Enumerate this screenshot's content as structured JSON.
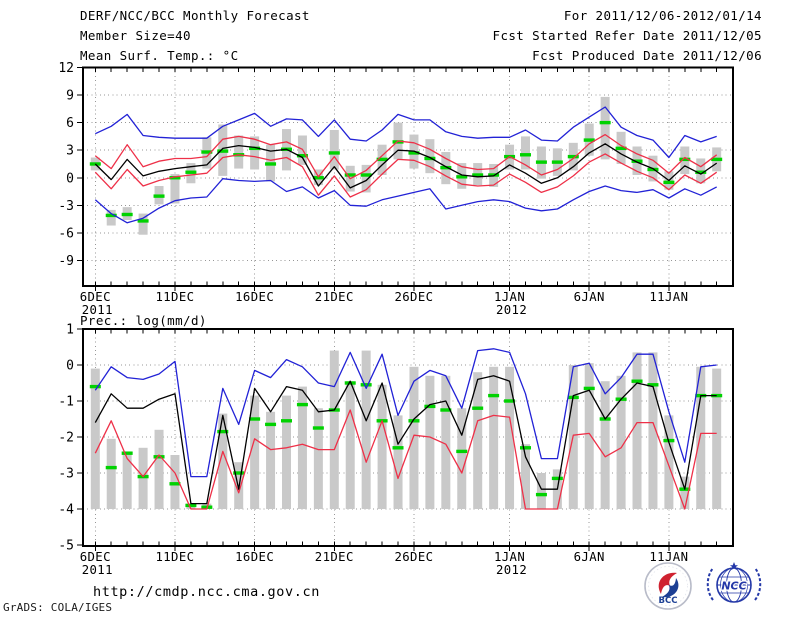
{
  "header": {
    "title": "DERF/NCC/BCC Monthly Forecast",
    "member_size": "Member Size=40",
    "for_period": "For 2011/12/06-2012/01/14",
    "refer_date": "Fcst Started Refer Date 2011/12/05",
    "produced_date": "Fcst Produced Date 2011/12/06"
  },
  "footer": {
    "url": "http://cmdp.ncc.cma.gov.cn",
    "grads_credit": "GrADS: COLA/IGES",
    "bcc_logo_text": "BCC",
    "ncc_logo_text": "NCC"
  },
  "colors": {
    "max_min_line": "#2222d6",
    "sigma_line": "#ee3048",
    "mean_line": "#000000",
    "obs_marker": "#00d200",
    "spread_bar": "#c9c9c9",
    "grid": "#979797"
  },
  "chart_data": [
    {
      "type": "line",
      "title": "Mean Surf. Temp.: °C",
      "n_points": 40,
      "grid": "dotted",
      "legend": "none",
      "ylim": [
        -11.7,
        12
      ],
      "yticks": [
        12,
        9,
        6,
        3,
        0,
        -3,
        -6,
        -9
      ],
      "x_ticks": [
        {
          "label": "6DEC",
          "sub": "2011",
          "day": 0
        },
        {
          "label": "11DEC",
          "day": 5
        },
        {
          "label": "16DEC",
          "day": 10
        },
        {
          "label": "21DEC",
          "day": 15
        },
        {
          "label": "26DEC",
          "day": 20
        },
        {
          "label": "1JAN",
          "sub": "2012",
          "day": 26
        },
        {
          "label": "6JAN",
          "day": 31
        },
        {
          "label": "11JAN",
          "day": 36
        }
      ],
      "bars": {
        "name": "ensemble-spread",
        "color": "#c9c9c9",
        "bottom": [
          0.8,
          -5.2,
          -4.6,
          -6.2,
          -2.9,
          -2.8,
          -0.6,
          1.0,
          0.2,
          1.0,
          0.9,
          -0.4,
          0.8,
          1.4,
          -0.8,
          0.9,
          -1.5,
          -1.6,
          0.3,
          2.0,
          1.0,
          0.5,
          -0.7,
          -1.2,
          -0.8,
          -1.0,
          0.9,
          0.9,
          -0.1,
          0.2,
          0.8,
          2.4,
          2.0,
          1.5,
          0.3,
          -0.4,
          -1.3,
          0.4,
          -0.6,
          0.7
        ],
        "top": [
          2.2,
          -3.5,
          -3.2,
          -3.9,
          -0.9,
          0.4,
          1.6,
          4.4,
          5.8,
          4.6,
          4.5,
          3.6,
          5.3,
          4.6,
          0.9,
          5.2,
          1.3,
          1.4,
          3.6,
          6.0,
          4.7,
          4.2,
          2.8,
          1.6,
          1.6,
          1.5,
          3.6,
          4.5,
          3.4,
          3.2,
          3.8,
          5.9,
          8.8,
          5.0,
          3.4,
          2.4,
          0.7,
          3.4,
          2.1,
          3.3
        ]
      },
      "series": [
        {
          "name": "plus-sigma",
          "style": "line",
          "color": "#ee3048",
          "values": [
            2.4,
            1.0,
            3.6,
            1.2,
            1.8,
            2.1,
            2.1,
            2.3,
            4.2,
            4.5,
            4.2,
            3.6,
            3.9,
            3.1,
            0.1,
            2.3,
            -0.1,
            0.8,
            2.4,
            4.0,
            3.8,
            3.1,
            2.1,
            1.2,
            0.9,
            1.0,
            2.3,
            1.4,
            0.3,
            0.9,
            2.1,
            3.7,
            4.7,
            3.5,
            2.6,
            1.9,
            0.5,
            2.2,
            1.2,
            2.5
          ]
        },
        {
          "name": "minus-sigma",
          "style": "line",
          "color": "#ee3048",
          "values": [
            0.6,
            -1.2,
            0.9,
            -0.9,
            -0.3,
            0.1,
            0.3,
            0.5,
            2.2,
            2.5,
            2.3,
            1.9,
            2.2,
            1.2,
            -1.9,
            0.2,
            -2.1,
            -1.3,
            0.4,
            2.0,
            1.9,
            1.2,
            0.2,
            -0.7,
            -0.9,
            -0.8,
            0.4,
            -0.5,
            -1.6,
            -1.0,
            0.2,
            1.7,
            2.6,
            1.6,
            0.7,
            0.0,
            -1.3,
            0.3,
            -0.6,
            0.6
          ]
        },
        {
          "name": "ensemble-max",
          "style": "line",
          "color": "#2222d6",
          "values": [
            4.8,
            5.6,
            6.9,
            4.6,
            4.4,
            4.3,
            4.3,
            4.3,
            5.6,
            6.3,
            7.0,
            5.6,
            6.4,
            6.3,
            4.5,
            6.3,
            4.2,
            4.0,
            5.2,
            6.9,
            6.3,
            6.3,
            5.0,
            4.5,
            4.3,
            4.4,
            4.4,
            5.2,
            4.1,
            4.0,
            5.5,
            6.6,
            7.7,
            5.5,
            4.6,
            4.1,
            2.2,
            4.6,
            3.9,
            4.5
          ]
        },
        {
          "name": "ensemble-min",
          "style": "line",
          "color": "#2222d6",
          "values": [
            -2.4,
            -3.9,
            -4.9,
            -4.4,
            -3.3,
            -2.5,
            -2.2,
            -2.1,
            -0.1,
            -0.3,
            -0.4,
            -0.3,
            -1.5,
            -1.0,
            -2.2,
            -1.4,
            -3.0,
            -3.1,
            -2.4,
            -2.0,
            -1.6,
            -1.2,
            -3.4,
            -3.0,
            -2.6,
            -2.4,
            -2.6,
            -3.3,
            -3.6,
            -3.4,
            -2.4,
            -1.5,
            -0.9,
            -1.4,
            -1.6,
            -1.3,
            -2.2,
            -1.2,
            -1.9,
            -1.0
          ]
        },
        {
          "name": "ensemble-mean",
          "style": "line",
          "color": "#000000",
          "values": [
            1.5,
            -0.2,
            2.0,
            0.2,
            0.7,
            1.0,
            1.2,
            1.4,
            3.2,
            3.5,
            3.3,
            2.9,
            3.1,
            2.2,
            -0.9,
            1.2,
            -1.1,
            -0.3,
            1.4,
            3.0,
            2.9,
            2.2,
            1.2,
            0.3,
            0.1,
            0.2,
            1.4,
            0.5,
            -0.6,
            0.0,
            1.2,
            2.7,
            3.7,
            2.6,
            1.7,
            1.0,
            -0.3,
            1.3,
            0.4,
            1.6
          ]
        },
        {
          "name": "observation",
          "style": "dash-marker",
          "color": "#00d200",
          "values": [
            1.5,
            -4.1,
            -4.0,
            -4.7,
            -2.0,
            0.0,
            0.6,
            2.8,
            2.9,
            2.5,
            3.2,
            1.5,
            3.1,
            2.4,
            0.0,
            2.7,
            0.3,
            0.3,
            2.0,
            3.9,
            2.7,
            2.1,
            1.1,
            0.1,
            0.3,
            0.3,
            2.3,
            2.5,
            1.7,
            1.7,
            2.3,
            4.1,
            6.0,
            3.2,
            1.8,
            0.9,
            -0.5,
            2.0,
            0.6,
            2.0
          ]
        }
      ]
    },
    {
      "type": "line",
      "title": "Prec.: log(mm/d)",
      "n_points": 40,
      "grid": "dotted",
      "legend": "none",
      "ylim": [
        -5,
        1
      ],
      "yticks": [
        1,
        0,
        -1,
        -2,
        -3,
        -4,
        -5
      ],
      "x_ticks": [
        {
          "label": "6DEC",
          "sub": "2011",
          "day": 0
        },
        {
          "label": "11DEC",
          "day": 5
        },
        {
          "label": "16DEC",
          "day": 10
        },
        {
          "label": "21DEC",
          "day": 15
        },
        {
          "label": "26DEC",
          "day": 20
        },
        {
          "label": "1JAN",
          "sub": "2012",
          "day": 26
        },
        {
          "label": "6JAN",
          "day": 31
        },
        {
          "label": "11JAN",
          "day": 36
        }
      ],
      "bars": {
        "name": "ensemble-spread",
        "color": "#c9c9c9",
        "base": -4,
        "top": [
          -0.1,
          -2.05,
          -2.4,
          -2.3,
          -1.8,
          -2.5,
          -3.85,
          -3.85,
          -1.35,
          -2.7,
          -0.85,
          -1.3,
          -0.85,
          -0.6,
          -1.2,
          0.4,
          -0.45,
          0.4,
          -0.55,
          -1.4,
          -0.05,
          -0.3,
          -0.3,
          -1.2,
          -0.2,
          -0.05,
          -0.05,
          -2.2,
          -3.0,
          -2.9,
          0.0,
          0.05,
          -0.45,
          -0.3,
          0.35,
          0.35,
          -1.4,
          -3.1,
          -0.05,
          -0.1
        ]
      },
      "series": [
        {
          "name": "ensemble-min",
          "style": "line",
          "color": "#ee3048",
          "values": [
            -2.45,
            -1.55,
            -2.6,
            -3.1,
            -2.5,
            -3.0,
            -4.0,
            -4.0,
            -2.4,
            -3.55,
            -2.05,
            -2.35,
            -2.3,
            -2.2,
            -2.35,
            -2.35,
            -1.25,
            -2.7,
            -1.55,
            -3.15,
            -1.95,
            -2.0,
            -2.2,
            -3.0,
            -1.55,
            -1.4,
            -1.45,
            -4.0,
            -4.0,
            -4.0,
            -1.95,
            -1.9,
            -2.55,
            -2.3,
            -1.6,
            -1.6,
            -2.8,
            -4.0,
            -1.9,
            -1.9
          ]
        },
        {
          "name": "ensemble-max",
          "style": "line",
          "color": "#2222d6",
          "values": [
            -0.7,
            -0.05,
            -0.35,
            -0.4,
            -0.25,
            0.1,
            -3.1,
            -3.1,
            -0.65,
            -1.65,
            -0.15,
            -0.35,
            0.15,
            -0.05,
            -0.5,
            -0.6,
            0.35,
            -0.65,
            0.3,
            -1.4,
            -0.45,
            -0.15,
            -0.3,
            -1.2,
            0.4,
            0.45,
            0.35,
            -0.8,
            -2.6,
            -2.6,
            -0.05,
            0.05,
            -0.8,
            -0.35,
            0.3,
            0.3,
            -1.3,
            -2.7,
            -0.05,
            0.0
          ]
        },
        {
          "name": "ensemble-mean",
          "style": "line",
          "color": "#000000",
          "values": [
            -1.6,
            -0.8,
            -1.2,
            -1.2,
            -0.95,
            -0.8,
            -3.85,
            -3.85,
            -1.4,
            -3.45,
            -0.65,
            -1.3,
            -0.6,
            -0.7,
            -1.3,
            -1.25,
            -0.45,
            -1.55,
            -0.5,
            -2.2,
            -1.5,
            -1.1,
            -1.0,
            -1.95,
            -0.4,
            -0.3,
            -0.45,
            -2.55,
            -3.45,
            -3.45,
            -0.85,
            -0.7,
            -1.5,
            -0.95,
            -0.5,
            -0.6,
            -2.15,
            -3.45,
            -0.85,
            -0.85
          ]
        },
        {
          "name": "observation",
          "style": "dash-marker",
          "color": "#00d200",
          "values": [
            -0.6,
            -2.85,
            -2.45,
            -3.1,
            -2.55,
            -3.3,
            -3.9,
            -3.95,
            -1.85,
            -3.0,
            -1.5,
            -1.65,
            -1.55,
            -1.1,
            -1.75,
            -1.25,
            -0.5,
            -0.55,
            -1.55,
            -2.3,
            -1.55,
            -1.15,
            -1.25,
            -2.4,
            -1.2,
            -0.85,
            -1.0,
            -2.3,
            -3.6,
            -3.15,
            -0.9,
            -0.65,
            -1.5,
            -0.95,
            -0.45,
            -0.55,
            -2.1,
            -3.45,
            -0.85,
            -0.85
          ]
        }
      ]
    }
  ]
}
